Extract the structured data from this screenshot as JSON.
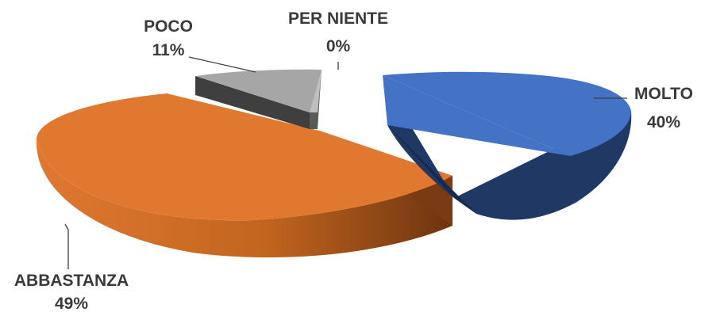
{
  "chart_data": {
    "type": "pie",
    "title": "",
    "style": "3d-exploded",
    "slices": [
      {
        "label": "MOLTO",
        "value": 40,
        "value_label": "40%",
        "color": "#4472C4",
        "side_color": "#1F3864"
      },
      {
        "label": "ABBASTANZA",
        "value": 49,
        "value_label": "49%",
        "color": "#E07830",
        "side_color": "#A9531E"
      },
      {
        "label": "POCO",
        "value": 11,
        "value_label": "11%",
        "color": "#A6A6A6",
        "side_color": "#3F3F3F"
      },
      {
        "label": "PER NIENTE",
        "value": 0,
        "value_label": "0%",
        "color": "#D9D9D9",
        "side_color": "#7F7F7F"
      }
    ],
    "legend": "none",
    "data_labels": "category-and-percent"
  }
}
